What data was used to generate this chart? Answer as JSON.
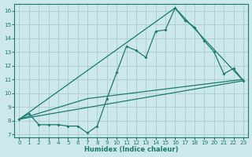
{
  "title": "",
  "xlabel": "Humidex (Indice chaleur)",
  "ylabel": "",
  "bg_color": "#cde8ec",
  "line_color": "#1a7a6e",
  "grid_color": "#aecfd4",
  "xlim": [
    -0.5,
    23.5
  ],
  "ylim": [
    6.8,
    16.5
  ],
  "yticks": [
    7,
    8,
    9,
    10,
    11,
    12,
    13,
    14,
    15,
    16
  ],
  "xticks": [
    0,
    1,
    2,
    3,
    4,
    5,
    6,
    7,
    8,
    9,
    10,
    11,
    12,
    13,
    14,
    15,
    16,
    17,
    18,
    19,
    20,
    21,
    22,
    23
  ],
  "series1_x": [
    0,
    1,
    2,
    3,
    4,
    5,
    6,
    7,
    8,
    9,
    10,
    11,
    12,
    13,
    14,
    15,
    16,
    17,
    18,
    19,
    20,
    21,
    22,
    23
  ],
  "series1_y": [
    8.1,
    8.5,
    7.7,
    7.7,
    7.7,
    7.6,
    7.6,
    7.1,
    7.6,
    9.6,
    11.5,
    13.4,
    13.1,
    12.6,
    14.5,
    14.6,
    16.2,
    15.3,
    14.8,
    13.8,
    13.0,
    11.4,
    11.8,
    10.9
  ],
  "series2_x": [
    0,
    23
  ],
  "series2_y": [
    8.1,
    10.9
  ],
  "series3_x": [
    0,
    7,
    23
  ],
  "series3_y": [
    8.1,
    9.6,
    11.0
  ],
  "series4_x": [
    0,
    16,
    23
  ],
  "series4_y": [
    8.1,
    16.2,
    10.9
  ]
}
